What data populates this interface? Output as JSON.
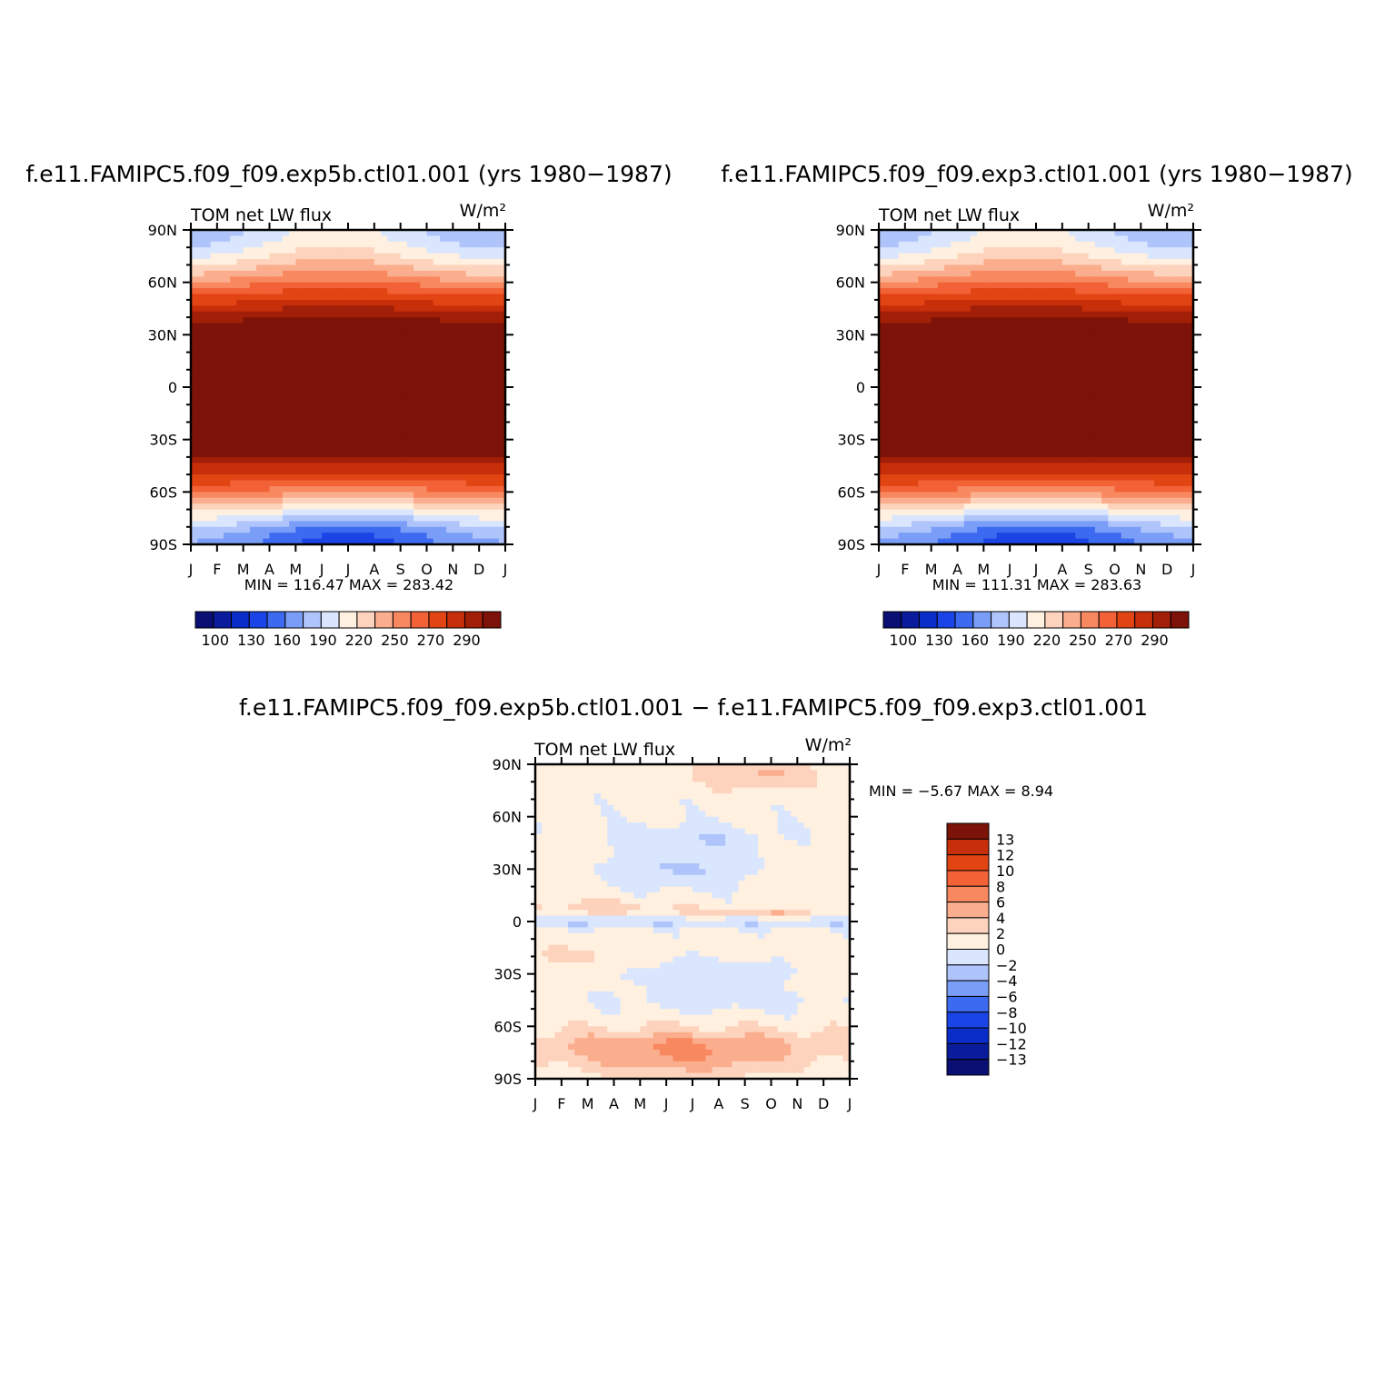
{
  "chart_data": [
    {
      "type": "heatmap",
      "title": "f.e11.FAMIPC5.f09_f09.exp5b.ctl01.001 (yrs 1980−1987)",
      "left_label": "TOM net LW flux",
      "units": "W/m²",
      "x_ticks": [
        "J",
        "F",
        "M",
        "A",
        "M",
        "J",
        "J",
        "A",
        "S",
        "O",
        "N",
        "D",
        "J"
      ],
      "y_ticks": [
        "90N",
        "60N",
        "30N",
        "0",
        "30S",
        "60S",
        "90S"
      ],
      "y_range": [
        -90,
        90
      ],
      "min_max_text": "MIN = 116.47 MAX = 283.42",
      "min": 116.47,
      "max": 283.42,
      "colorbar_levels": [
        90,
        100,
        110,
        120,
        130,
        140,
        150,
        160,
        170,
        180,
        190,
        200,
        210,
        220,
        230,
        240,
        250,
        260,
        270,
        280,
        290
      ],
      "colorbar_labels": [
        "100",
        "130",
        "160",
        "190",
        "220",
        "250",
        "270",
        "290"
      ]
    },
    {
      "type": "heatmap",
      "title": "f.e11.FAMIPC5.f09_f09.exp3.ctl01.001 (yrs 1980−1987)",
      "left_label": "TOM net LW flux",
      "units": "W/m²",
      "x_ticks": [
        "J",
        "F",
        "M",
        "A",
        "M",
        "J",
        "J",
        "A",
        "S",
        "O",
        "N",
        "D",
        "J"
      ],
      "y_ticks": [
        "90N",
        "60N",
        "30N",
        "0",
        "30S",
        "60S",
        "90S"
      ],
      "y_range": [
        -90,
        90
      ],
      "min_max_text": "MIN = 111.31 MAX = 283.63",
      "min": 111.31,
      "max": 283.63,
      "colorbar_levels": [
        90,
        100,
        110,
        120,
        130,
        140,
        150,
        160,
        170,
        180,
        190,
        200,
        210,
        220,
        230,
        240,
        250,
        260,
        270,
        280,
        290
      ],
      "colorbar_labels": [
        "100",
        "130",
        "160",
        "190",
        "220",
        "250",
        "270",
        "290"
      ]
    },
    {
      "type": "heatmap",
      "title": "f.e11.FAMIPC5.f09_f09.exp5b.ctl01.001 − f.e11.FAMIPC5.f09_f09.exp3.ctl01.001",
      "left_label": "TOM net LW flux",
      "units": "W/m²",
      "x_ticks": [
        "J",
        "F",
        "M",
        "A",
        "M",
        "J",
        "J",
        "A",
        "S",
        "O",
        "N",
        "D",
        "J"
      ],
      "y_ticks": [
        "90N",
        "60N",
        "30N",
        "0",
        "30S",
        "60S",
        "90S"
      ],
      "y_range": [
        -90,
        90
      ],
      "min_max_text": "MIN = −5.67 MAX = 8.94",
      "min": -5.67,
      "max": 8.94,
      "colorbar_levels": [
        -13,
        -12,
        -10,
        -8,
        -6,
        -4,
        -2,
        0,
        2,
        4,
        6,
        8,
        10,
        12,
        13
      ],
      "colorbar_labels": [
        "13",
        "12",
        "10",
        "8",
        "6",
        "4",
        "2",
        "0",
        "−2",
        "−4",
        "−6",
        "−8",
        "−10",
        "−12",
        "−13"
      ]
    }
  ],
  "palettes": {
    "abs": [
      "#0a0f74",
      "#0a1c9c",
      "#0a2cc8",
      "#1a44e6",
      "#3c6af0",
      "#7a9ef7",
      "#aec4fb",
      "#d9e6fd",
      "#fff0e0",
      "#fdd3bd",
      "#fbae8e",
      "#f88860",
      "#f36236",
      "#e24414",
      "#c72e0a",
      "#a11f08",
      "#7d1208"
    ],
    "diff": [
      "#0a0f74",
      "#0a1c9c",
      "#0a2cc8",
      "#1a44e6",
      "#3c6af0",
      "#7a9ef7",
      "#aec4fb",
      "#d9e6fd",
      "#fff0e0",
      "#fdd3bd",
      "#fbae8e",
      "#f88860",
      "#f36236",
      "#e24414",
      "#c72e0a",
      "#7d1208"
    ]
  }
}
